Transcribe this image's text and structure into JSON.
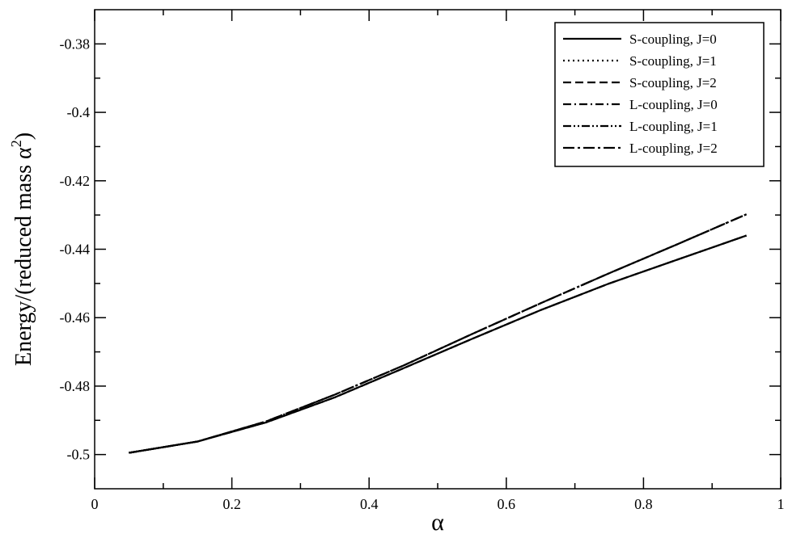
{
  "chart_data": {
    "type": "line",
    "xlabel": "α",
    "ylabel": "Energy/(reduced mass α²)",
    "ylabel_parts": {
      "main": "Energy/(reduced mass α",
      "sup": "2",
      "close": ")"
    },
    "xlim": [
      0,
      1
    ],
    "ylim": [
      -0.51,
      -0.37
    ],
    "xticks": [
      0,
      0.2,
      0.4,
      0.6,
      0.8,
      1
    ],
    "xtick_labels": [
      "0",
      "0.2",
      "0.4",
      "0.6",
      "0.8",
      "1"
    ],
    "yticks": [
      -0.5,
      -0.48,
      -0.46,
      -0.44,
      -0.42,
      -0.4,
      -0.38
    ],
    "ytick_labels": [
      "-0.5",
      "-0.48",
      "-0.46",
      "-0.44",
      "-0.42",
      "-0.4",
      "-0.38"
    ],
    "grid": false,
    "legend_position": "top-right",
    "x": [
      0.05,
      0.15,
      0.25,
      0.35,
      0.45,
      0.55,
      0.65,
      0.75,
      0.85,
      0.95
    ],
    "series": [
      {
        "name": "S-coupling, J=0",
        "dash": "solid",
        "values": [
          -0.4995,
          -0.4962,
          -0.4906,
          -0.4833,
          -0.4748,
          -0.4662,
          -0.4578,
          -0.45,
          -0.443,
          -0.436
        ]
      },
      {
        "name": "S-coupling, J=1",
        "dash": "dotted",
        "values": [
          -0.4995,
          -0.4962,
          -0.4906,
          -0.4833,
          -0.4748,
          -0.4662,
          -0.4578,
          -0.45,
          -0.443,
          -0.436
        ]
      },
      {
        "name": "S-coupling, J=2",
        "dash": "dashed",
        "values": [
          -0.4995,
          -0.4962,
          -0.4906,
          -0.4833,
          -0.4748,
          -0.4662,
          -0.4578,
          -0.45,
          -0.443,
          -0.436
        ]
      },
      {
        "name": "L-coupling, J=0",
        "dash": "dashdot",
        "values": [
          -0.4995,
          -0.4962,
          -0.4903,
          -0.4825,
          -0.474,
          -0.4648,
          -0.4558,
          -0.447,
          -0.4385,
          -0.4298
        ]
      },
      {
        "name": "L-coupling, J=1",
        "dash": "dashdotdot",
        "values": [
          -0.4995,
          -0.4962,
          -0.4903,
          -0.4825,
          -0.474,
          -0.4648,
          -0.4558,
          -0.447,
          -0.4385,
          -0.4298
        ]
      },
      {
        "name": "L-coupling, J=2",
        "dash": "longdashdot",
        "values": [
          -0.4995,
          -0.4962,
          -0.4903,
          -0.4825,
          -0.474,
          -0.4648,
          -0.4558,
          -0.447,
          -0.4385,
          -0.4298
        ]
      }
    ]
  }
}
